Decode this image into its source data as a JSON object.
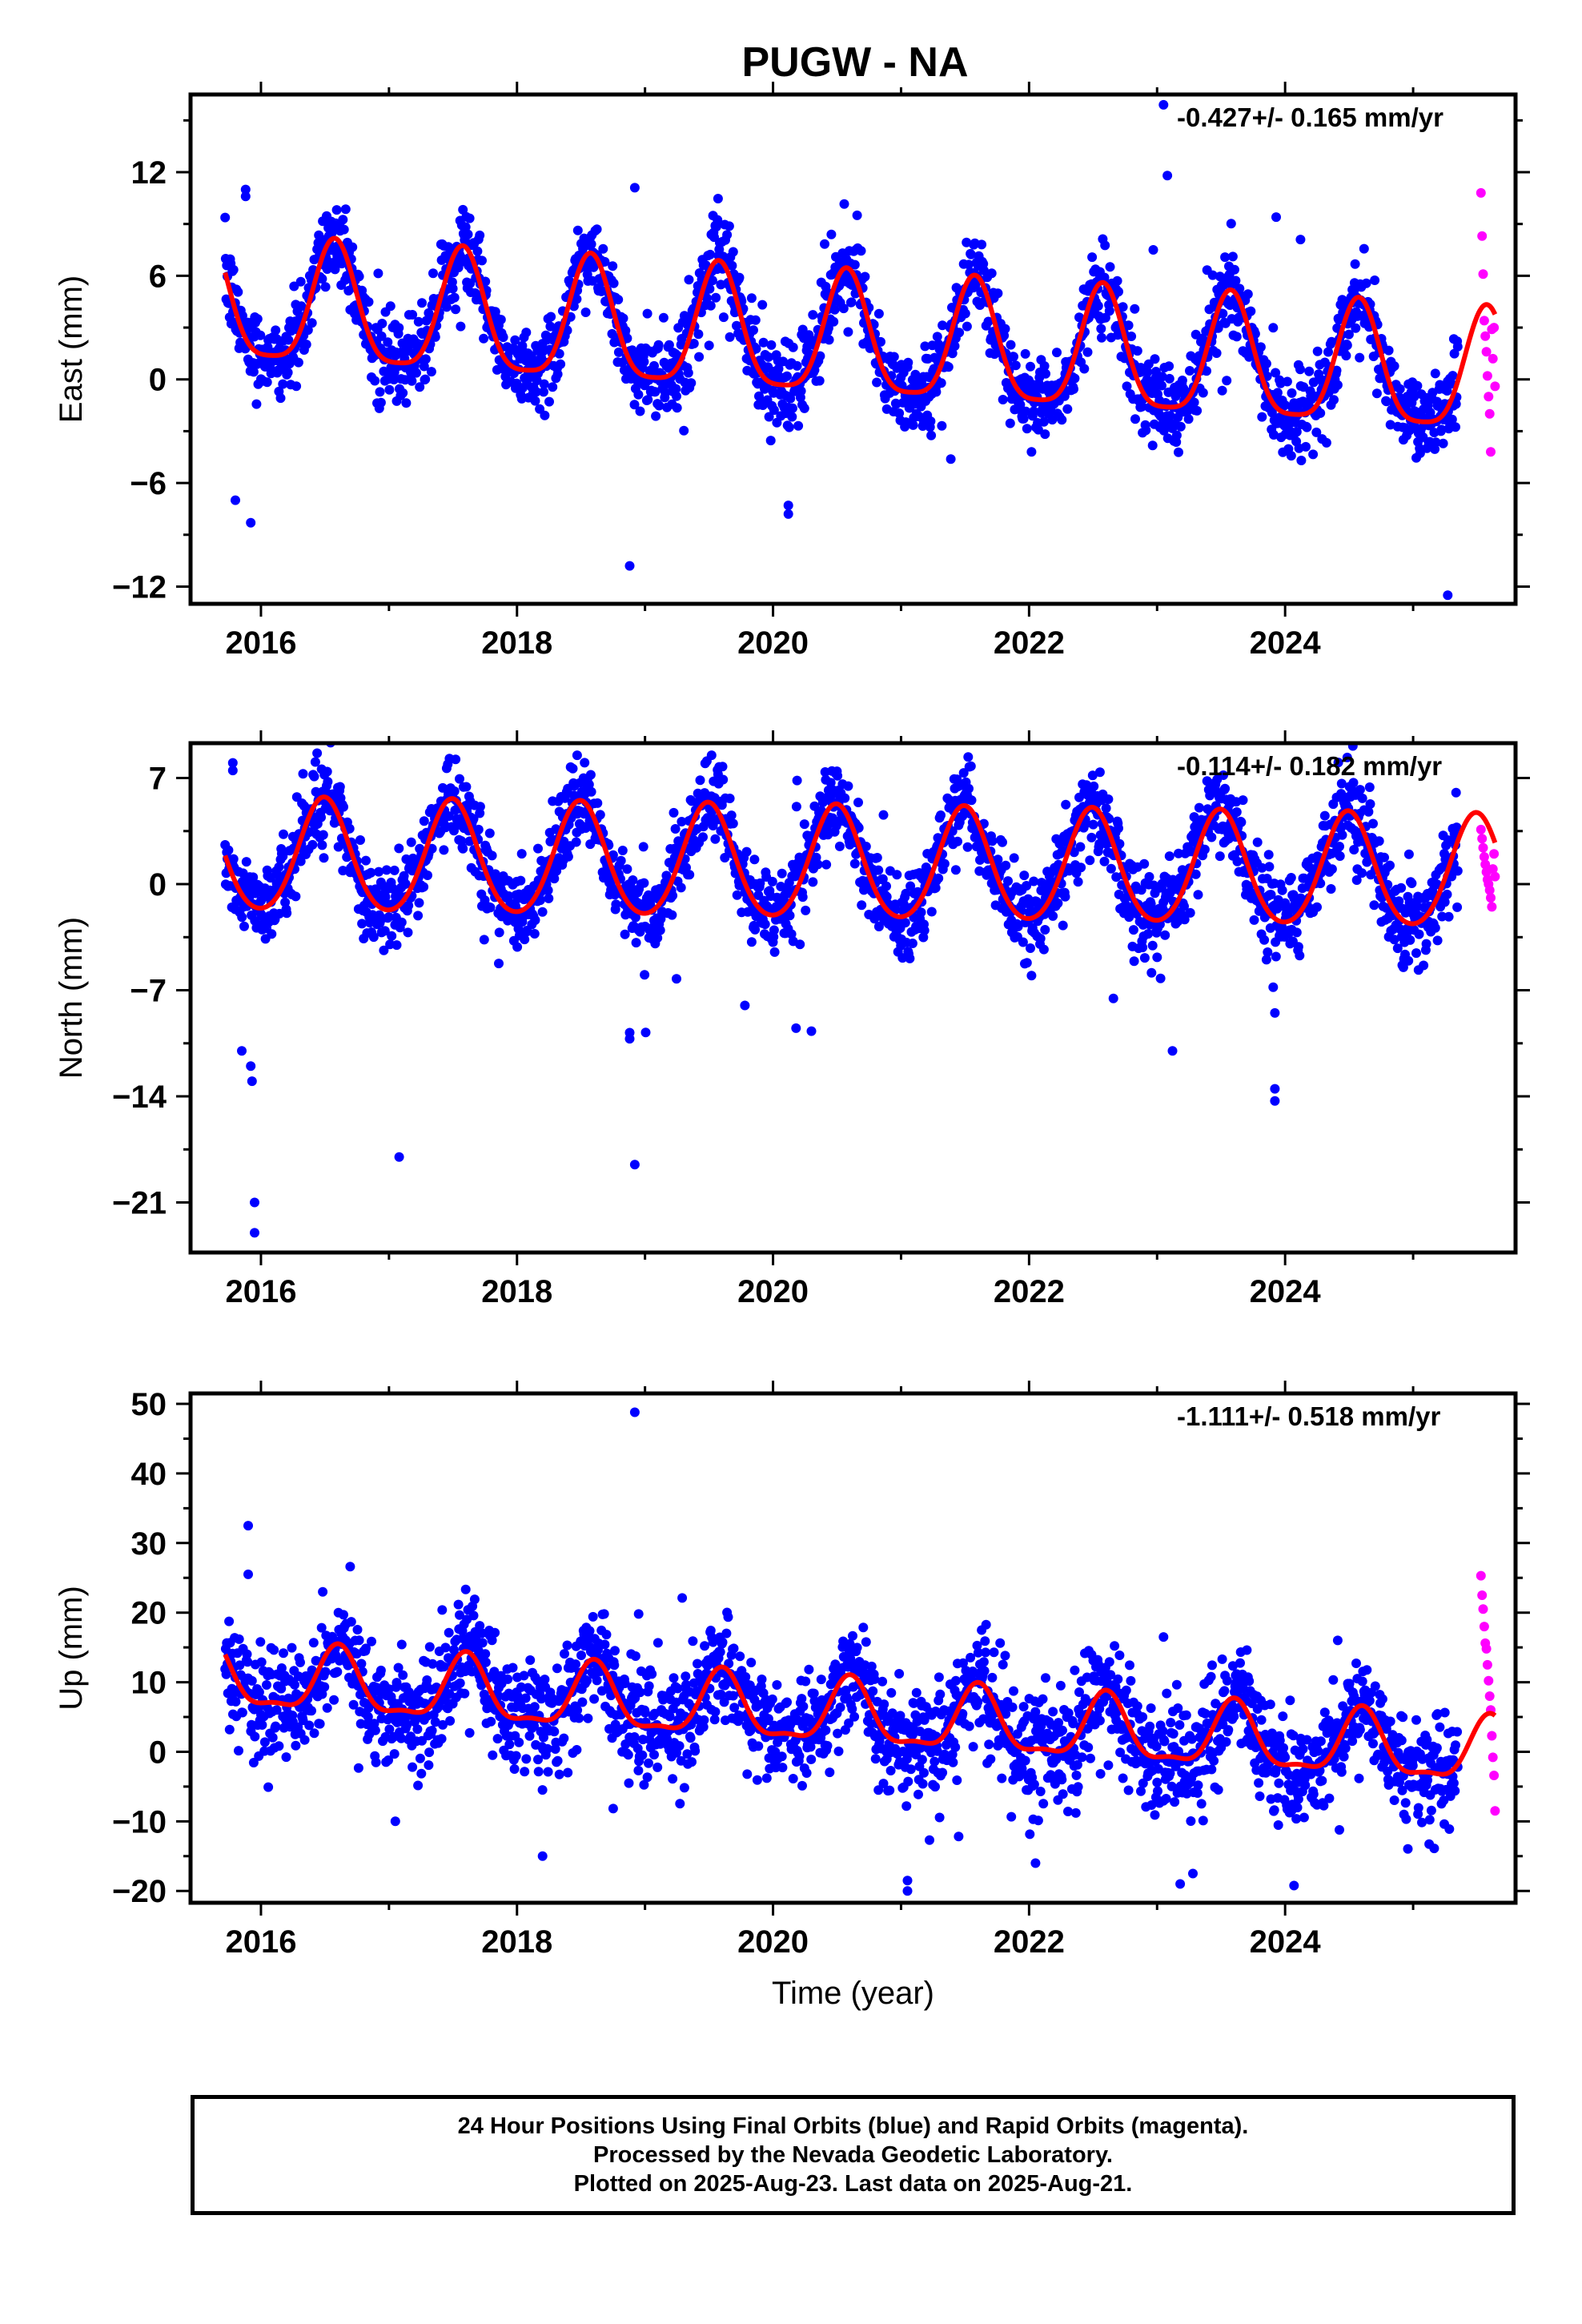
{
  "title": "PUGW - NA",
  "colors": {
    "final_orbits": "#0000ff",
    "rapid_orbits": "#ff00ff",
    "model_fit": "#ff0000",
    "frame": "#000000"
  },
  "footer": {
    "line1": "24 Hour Positions Using Final Orbits (blue) and Rapid Orbits (magenta).",
    "line2": "Processed by the Nevada Geodetic Laboratory.",
    "line3": "Plotted on 2025-Aug-23. Last data on 2025-Aug-21."
  },
  "chart_data": [
    {
      "type": "scatter",
      "panel": "east",
      "ylabel": "East (mm)",
      "xlabel": "",
      "rate_label": "-0.427+/- 0.165 mm/yr",
      "xlim": [
        2015.45,
        2025.8
      ],
      "ylim": [
        -13,
        16.5
      ],
      "xticks": [
        2016,
        2018,
        2020,
        2022,
        2024
      ],
      "yticks": [
        12,
        6,
        0,
        -6,
        -12
      ],
      "ytick_labels": [
        "12",
        "6",
        "0",
        "−6",
        "−12"
      ],
      "grid": false,
      "series": [
        {
          "role": "final_orbits_daily",
          "start": 2015.72,
          "end": 2025.35,
          "missing": [
            [
              2025.35,
              2025.52
            ]
          ]
        },
        {
          "role": "rapid_orbits_daily",
          "start": 2025.53,
          "end": 2025.64,
          "values": [
            10.8,
            8.3,
            6.1,
            3.4,
            2.5,
            1.6,
            0.2,
            -1.0,
            -2.0,
            -4.2,
            2.9,
            1.2,
            3.0,
            -0.4
          ]
        },
        {
          "role": "model_fit",
          "trend_mm_per_yr": -0.427,
          "offset": 2.2,
          "annual_amplitude": 3.5,
          "annual_phase_day": 210,
          "semiannual_amplitude": 0.8
        }
      ],
      "outliers": [
        [
          2015.88,
          11.0
        ],
        [
          2015.88,
          10.6
        ],
        [
          2018.92,
          11.1
        ],
        [
          2023.05,
          15.9
        ],
        [
          2023.08,
          11.8
        ],
        [
          2022.97,
          7.5
        ],
        [
          2023.93,
          9.4
        ],
        [
          2024.12,
          8.1
        ],
        [
          2018.88,
          -10.8
        ],
        [
          2025.27,
          -12.5
        ],
        [
          2015.92,
          -8.3
        ],
        [
          2015.8,
          -7.0
        ],
        [
          2020.12,
          -7.8
        ],
        [
          2020.12,
          -7.3
        ]
      ]
    },
    {
      "type": "scatter",
      "panel": "north",
      "ylabel": "North (mm)",
      "xlabel": "",
      "rate_label": "-0.114+/- 0.182 mm/yr",
      "xlim": [
        2015.45,
        2025.8
      ],
      "ylim": [
        -24.3,
        9.3
      ],
      "xticks": [
        2016,
        2018,
        2020,
        2022,
        2024
      ],
      "yticks": [
        7,
        0,
        -7,
        -14,
        -21
      ],
      "ytick_labels": [
        "7",
        "0",
        "−7",
        "−14",
        "−21"
      ],
      "grid": false,
      "series": [
        {
          "role": "final_orbits_daily",
          "start": 2015.72,
          "end": 2025.35,
          "missing": [
            [
              2025.35,
              2025.52
            ]
          ]
        },
        {
          "role": "rapid_orbits_daily",
          "start": 2025.53,
          "end": 2025.64,
          "values": [
            3.6,
            3.0,
            2.4,
            1.8,
            1.3,
            0.8,
            0.3,
            0.0,
            -0.4,
            -0.9,
            -1.5,
            1.0,
            2.0,
            0.5
          ]
        },
        {
          "role": "model_fit",
          "trend_mm_per_yr": -0.114,
          "offset": 1.2,
          "annual_amplitude": 3.7,
          "annual_phase_day": 180,
          "semiannual_amplitude": 0.4
        }
      ],
      "outliers": [
        [
          2015.78,
          8.0
        ],
        [
          2015.78,
          7.5
        ],
        [
          2015.85,
          -11.0
        ],
        [
          2015.92,
          -12.0
        ],
        [
          2015.93,
          -13.0
        ],
        [
          2015.95,
          -21.0
        ],
        [
          2015.95,
          -23.0
        ],
        [
          2017.08,
          -18.0
        ],
        [
          2018.92,
          -18.5
        ],
        [
          2018.88,
          -9.8
        ],
        [
          2018.88,
          -10.2
        ],
        [
          2019.78,
          -8.0
        ],
        [
          2020.18,
          -9.5
        ],
        [
          2020.3,
          -9.7
        ],
        [
          2023.12,
          -11.0
        ],
        [
          2023.92,
          -13.5
        ],
        [
          2023.92,
          -14.3
        ],
        [
          2023.92,
          -8.5
        ],
        [
          2019.52,
          8.5
        ],
        [
          2018.47,
          8.5
        ]
      ]
    },
    {
      "type": "scatter",
      "panel": "up",
      "ylabel": "Up (mm)",
      "xlabel": "Time (year)",
      "rate_label": "-1.111+/- 0.518 mm/yr",
      "xlim": [
        2015.45,
        2025.8
      ],
      "ylim": [
        -21.7,
        51.5
      ],
      "xticks": [
        2016,
        2018,
        2020,
        2022,
        2024
      ],
      "yticks": [
        50,
        40,
        30,
        20,
        10,
        0,
        -10,
        -20
      ],
      "ytick_labels": [
        "50",
        "40",
        "30",
        "20",
        "10",
        "0",
        "−10",
        "−20"
      ],
      "grid": false,
      "series": [
        {
          "role": "final_orbits_daily",
          "start": 2015.72,
          "end": 2025.35,
          "missing": [
            [
              2025.35,
              2025.52
            ]
          ]
        },
        {
          "role": "rapid_orbits_daily",
          "start": 2025.53,
          "end": 2025.64,
          "values": [
            25.3,
            22.5,
            20.5,
            18.0,
            15.6,
            14.8,
            12.5,
            10.2,
            8.0,
            6.0,
            2.3,
            -0.8,
            -3.4,
            -8.5
          ]
        },
        {
          "role": "model_fit",
          "trend_mm_per_yr": -1.111,
          "offset": 5.2,
          "annual_amplitude": 4.5,
          "annual_phase_day": 220,
          "semiannual_amplitude": 1.5
        }
      ],
      "outliers": [
        [
          2015.9,
          32.5
        ],
        [
          2015.9,
          25.5
        ],
        [
          2018.92,
          48.8
        ],
        [
          2018.95,
          19.8
        ],
        [
          2023.05,
          16.5
        ],
        [
          2021.05,
          -18.5
        ],
        [
          2021.05,
          -20.0
        ],
        [
          2022.05,
          -16.0
        ],
        [
          2023.18,
          -19.0
        ],
        [
          2023.28,
          -17.5
        ],
        [
          2018.2,
          -15.0
        ],
        [
          2017.05,
          -10.0
        ]
      ]
    }
  ]
}
